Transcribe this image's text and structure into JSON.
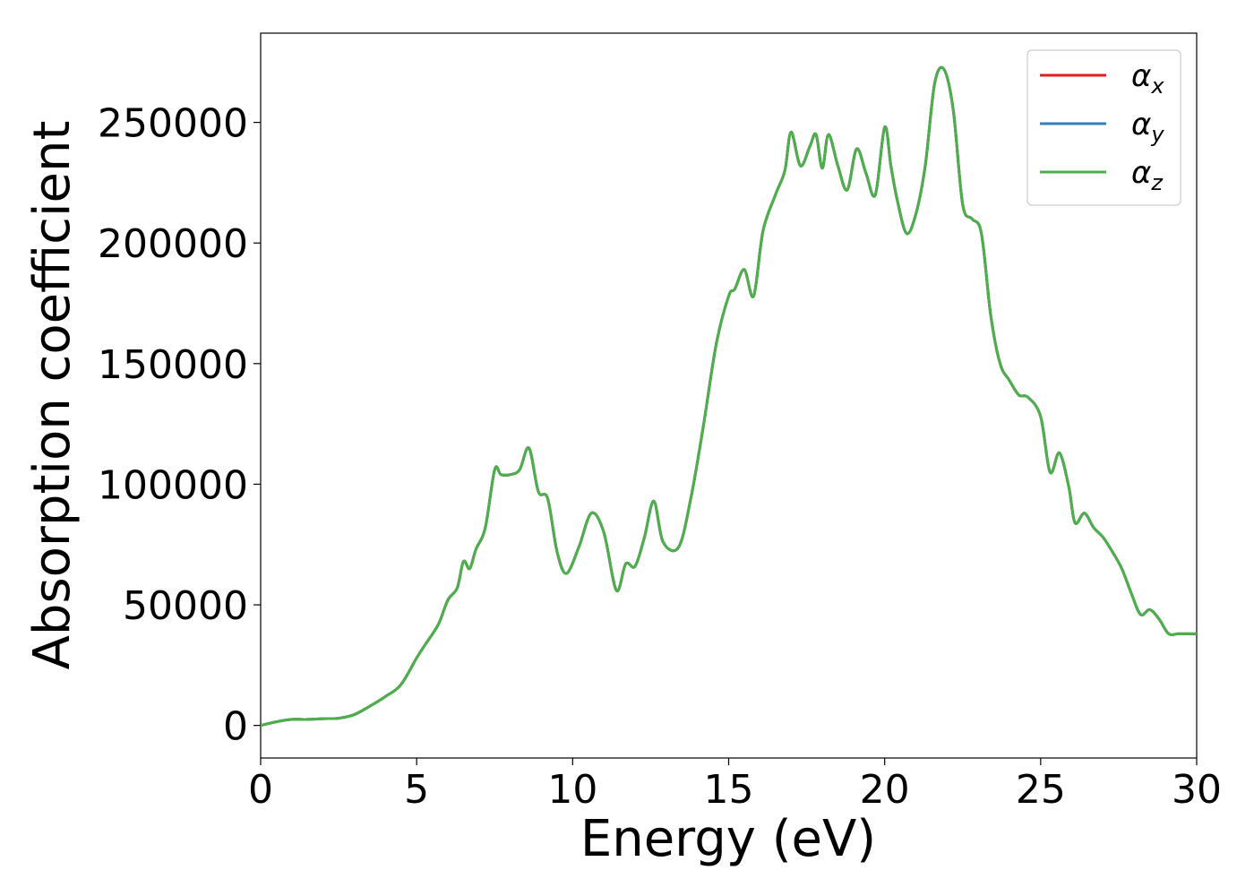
{
  "chart_data": {
    "type": "line",
    "title": "",
    "xlabel": "Energy (eV)",
    "ylabel": "Absorption coefficient",
    "xlim": [
      0,
      30
    ],
    "ylim": [
      -13500,
      287000
    ],
    "xticks": [
      0,
      5,
      10,
      15,
      20,
      25,
      30
    ],
    "yticks": [
      0,
      50000,
      100000,
      150000,
      200000,
      250000
    ],
    "xtick_labels": [
      "0",
      "5",
      "10",
      "15",
      "20",
      "25",
      "30"
    ],
    "ytick_labels": [
      "0",
      "50000",
      "100000",
      "150000",
      "200000",
      "250000"
    ],
    "grid": false,
    "legend_position": "top-right",
    "series": [
      {
        "name": "α",
        "subscript": "x",
        "color": "#e41a1c",
        "x": [
          0,
          0.5,
          1.0,
          1.5,
          2.0,
          2.5,
          3.0,
          3.5,
          4.0,
          4.5,
          5.0,
          5.3,
          5.7,
          6.0,
          6.3,
          6.5,
          6.7,
          6.9,
          7.2,
          7.5,
          7.7,
          8.0,
          8.3,
          8.6,
          8.9,
          9.2,
          9.5,
          9.8,
          10.2,
          10.6,
          11.0,
          11.4,
          11.7,
          12.0,
          12.3,
          12.6,
          12.9,
          13.4,
          13.8,
          14.2,
          14.6,
          15.0,
          15.2,
          15.5,
          15.8,
          16.1,
          16.5,
          16.8,
          17.0,
          17.3,
          17.6,
          17.8,
          18.0,
          18.2,
          18.5,
          18.8,
          19.1,
          19.4,
          19.7,
          20.0,
          20.2,
          20.4,
          20.7,
          21.0,
          21.3,
          21.6,
          21.9,
          22.2,
          22.5,
          22.8,
          23.1,
          23.4,
          23.7,
          24.0,
          24.3,
          24.6,
          25.0,
          25.3,
          25.6,
          25.9,
          26.1,
          26.4,
          26.7,
          27.0,
          27.3,
          27.6,
          27.9,
          28.2,
          28.5,
          28.8,
          29.1,
          29.4,
          29.7,
          30.0
        ],
        "values": [
          0,
          1500,
          2500,
          2500,
          2800,
          3000,
          4500,
          8000,
          12000,
          17000,
          28000,
          34000,
          42000,
          52000,
          57000,
          68000,
          65000,
          73000,
          82000,
          106000,
          104000,
          104000,
          106000,
          115000,
          97000,
          94000,
          72000,
          63000,
          74000,
          88000,
          80000,
          56000,
          67000,
          66000,
          78000,
          93000,
          76000,
          74000,
          95000,
          125000,
          158000,
          178000,
          181000,
          189000,
          178000,
          205000,
          220000,
          230000,
          246000,
          232000,
          240000,
          245000,
          231000,
          245000,
          232000,
          222000,
          239000,
          229000,
          220000,
          248000,
          232000,
          218000,
          204000,
          212000,
          232000,
          266000,
          272000,
          255000,
          216000,
          210000,
          204000,
          170000,
          150000,
          143000,
          137000,
          136000,
          128000,
          105000,
          113000,
          99000,
          84000,
          88000,
          82000,
          78000,
          72000,
          65000,
          55000,
          46000,
          48000,
          44000,
          38000,
          38000,
          38000,
          38000
        ]
      },
      {
        "name": "α",
        "subscript": "y",
        "color": "#377eb8",
        "x": [
          0,
          0.5,
          1.0,
          1.5,
          2.0,
          2.5,
          3.0,
          3.5,
          4.0,
          4.5,
          5.0,
          5.3,
          5.7,
          6.0,
          6.3,
          6.5,
          6.7,
          6.9,
          7.2,
          7.5,
          7.7,
          8.0,
          8.3,
          8.6,
          8.9,
          9.2,
          9.5,
          9.8,
          10.2,
          10.6,
          11.0,
          11.4,
          11.7,
          12.0,
          12.3,
          12.6,
          12.9,
          13.4,
          13.8,
          14.2,
          14.6,
          15.0,
          15.2,
          15.5,
          15.8,
          16.1,
          16.5,
          16.8,
          17.0,
          17.3,
          17.6,
          17.8,
          18.0,
          18.2,
          18.5,
          18.8,
          19.1,
          19.4,
          19.7,
          20.0,
          20.2,
          20.4,
          20.7,
          21.0,
          21.3,
          21.6,
          21.9,
          22.2,
          22.5,
          22.8,
          23.1,
          23.4,
          23.7,
          24.0,
          24.3,
          24.6,
          25.0,
          25.3,
          25.6,
          25.9,
          26.1,
          26.4,
          26.7,
          27.0,
          27.3,
          27.6,
          27.9,
          28.2,
          28.5,
          28.8,
          29.1,
          29.4,
          29.7,
          30.0
        ],
        "values": [
          0,
          1500,
          2500,
          2500,
          2800,
          3000,
          4500,
          8000,
          12000,
          17000,
          28000,
          34000,
          42000,
          52000,
          57000,
          68000,
          65000,
          73000,
          82000,
          106000,
          104000,
          104000,
          106000,
          115000,
          97000,
          94000,
          72000,
          63000,
          74000,
          88000,
          80000,
          56000,
          67000,
          66000,
          78000,
          93000,
          76000,
          74000,
          95000,
          125000,
          158000,
          178000,
          181000,
          189000,
          178000,
          205000,
          220000,
          230000,
          246000,
          232000,
          240000,
          245000,
          231000,
          245000,
          232000,
          222000,
          239000,
          229000,
          220000,
          248000,
          232000,
          218000,
          204000,
          212000,
          232000,
          266000,
          272000,
          255000,
          216000,
          210000,
          204000,
          170000,
          150000,
          143000,
          137000,
          136000,
          128000,
          105000,
          113000,
          99000,
          84000,
          88000,
          82000,
          78000,
          72000,
          65000,
          55000,
          46000,
          48000,
          44000,
          38000,
          38000,
          38000,
          38000
        ]
      },
      {
        "name": "α",
        "subscript": "z",
        "color": "#4daf4a",
        "x": [
          0,
          0.5,
          1.0,
          1.5,
          2.0,
          2.5,
          3.0,
          3.5,
          4.0,
          4.5,
          5.0,
          5.3,
          5.7,
          6.0,
          6.3,
          6.5,
          6.7,
          6.9,
          7.2,
          7.5,
          7.7,
          8.0,
          8.3,
          8.6,
          8.9,
          9.2,
          9.5,
          9.8,
          10.2,
          10.6,
          11.0,
          11.4,
          11.7,
          12.0,
          12.3,
          12.6,
          12.9,
          13.4,
          13.8,
          14.2,
          14.6,
          15.0,
          15.2,
          15.5,
          15.8,
          16.1,
          16.5,
          16.8,
          17.0,
          17.3,
          17.6,
          17.8,
          18.0,
          18.2,
          18.5,
          18.8,
          19.1,
          19.4,
          19.7,
          20.0,
          20.2,
          20.4,
          20.7,
          21.0,
          21.3,
          21.6,
          21.9,
          22.2,
          22.5,
          22.8,
          23.1,
          23.4,
          23.7,
          24.0,
          24.3,
          24.6,
          25.0,
          25.3,
          25.6,
          25.9,
          26.1,
          26.4,
          26.7,
          27.0,
          27.3,
          27.6,
          27.9,
          28.2,
          28.5,
          28.8,
          29.1,
          29.4,
          29.7,
          30.0
        ],
        "values": [
          0,
          1500,
          2500,
          2500,
          2800,
          3000,
          4500,
          8000,
          12000,
          17000,
          28000,
          34000,
          42000,
          52000,
          57000,
          68000,
          65000,
          73000,
          82000,
          106000,
          104000,
          104000,
          106000,
          115000,
          97000,
          94000,
          72000,
          63000,
          74000,
          88000,
          80000,
          56000,
          67000,
          66000,
          78000,
          93000,
          76000,
          74000,
          95000,
          125000,
          158000,
          178000,
          181000,
          189000,
          178000,
          205000,
          220000,
          230000,
          246000,
          232000,
          240000,
          245000,
          231000,
          245000,
          232000,
          222000,
          239000,
          229000,
          220000,
          248000,
          232000,
          218000,
          204000,
          212000,
          232000,
          266000,
          272000,
          255000,
          216000,
          210000,
          204000,
          170000,
          150000,
          143000,
          137000,
          136000,
          128000,
          105000,
          113000,
          99000,
          84000,
          88000,
          82000,
          78000,
          72000,
          65000,
          55000,
          46000,
          48000,
          44000,
          38000,
          38000,
          38000,
          38000
        ]
      }
    ]
  }
}
